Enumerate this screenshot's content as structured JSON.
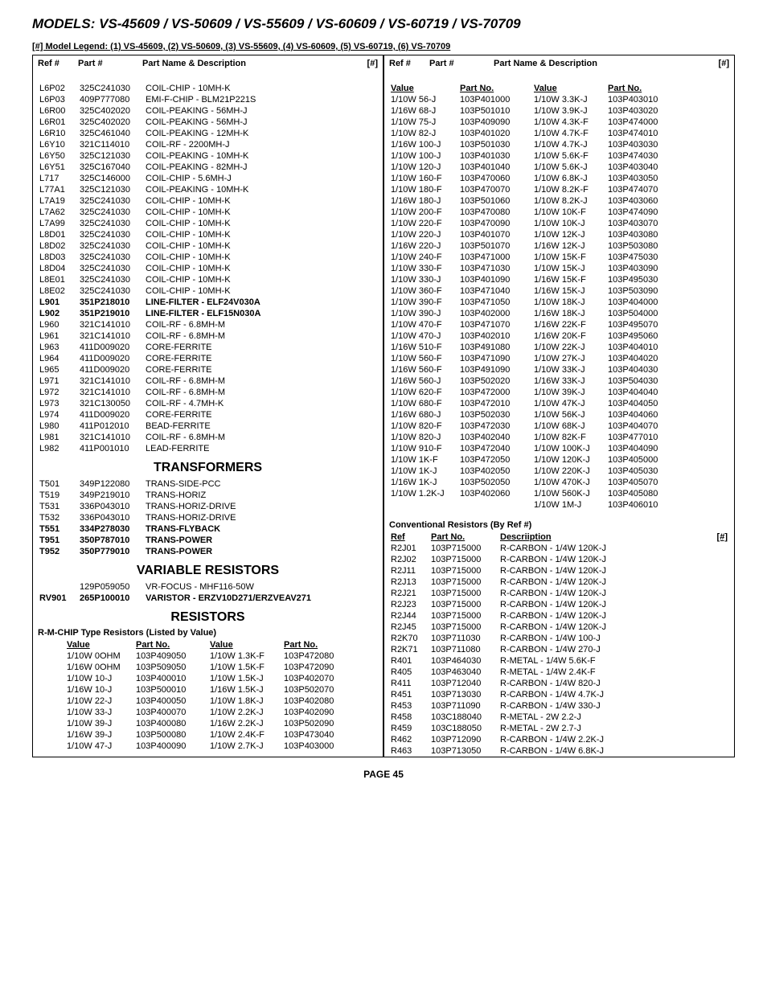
{
  "title": "MODELS: VS-45609 / VS-50609 / VS-55609 / VS-60609 / VS-60719 / VS-70709",
  "legend": "[#] Model Legend: (1) VS-45609, (2) VS-50609, (3) VS-55609, (4) VS-60609, (5) VS-60719, (6) VS-70709",
  "header": {
    "ref": "Ref #",
    "part": "Part #",
    "desc": "Part Name & Description",
    "num": "[#]"
  },
  "left_parts": [
    {
      "ref": "L6P02",
      "part": "325C241030",
      "desc": "COIL-CHIP - 10MH-K"
    },
    {
      "ref": "L6P03",
      "part": "409P777080",
      "desc": "EMI-F-CHIP - BLM21P221S"
    },
    {
      "ref": "L6R00",
      "part": "325C402020",
      "desc": "COIL-PEAKING - 56MH-J"
    },
    {
      "ref": "L6R01",
      "part": "325C402020",
      "desc": "COIL-PEAKING - 56MH-J"
    },
    {
      "ref": "L6R10",
      "part": "325C461040",
      "desc": "COIL-PEAKING - 12MH-K"
    },
    {
      "ref": "L6Y10",
      "part": "321C114010",
      "desc": "COIL-RF - 2200MH-J"
    },
    {
      "ref": "L6Y50",
      "part": "325C121030",
      "desc": "COIL-PEAKING - 10MH-K"
    },
    {
      "ref": "L6Y51",
      "part": "325C167040",
      "desc": "COIL-PEAKING - 82MH-J"
    },
    {
      "ref": "L717",
      "part": "325C146000",
      "desc": "COIL-CHIP - 5.6MH-J"
    },
    {
      "ref": "L77A1",
      "part": "325C121030",
      "desc": "COIL-PEAKING - 10MH-K"
    },
    {
      "ref": "L7A19",
      "part": "325C241030",
      "desc": "COIL-CHIP - 10MH-K"
    },
    {
      "ref": "L7A62",
      "part": "325C241030",
      "desc": "COIL-CHIP - 10MH-K"
    },
    {
      "ref": "L7A99",
      "part": "325C241030",
      "desc": "COIL-CHIP - 10MH-K"
    },
    {
      "ref": "L8D01",
      "part": "325C241030",
      "desc": "COIL-CHIP - 10MH-K"
    },
    {
      "ref": "L8D02",
      "part": "325C241030",
      "desc": "COIL-CHIP - 10MH-K"
    },
    {
      "ref": "L8D03",
      "part": "325C241030",
      "desc": "COIL-CHIP - 10MH-K"
    },
    {
      "ref": "L8D04",
      "part": "325C241030",
      "desc": "COIL-CHIP - 10MH-K"
    },
    {
      "ref": "L8E01",
      "part": "325C241030",
      "desc": "COIL-CHIP - 10MH-K"
    },
    {
      "ref": "L8E02",
      "part": "325C241030",
      "desc": "COIL-CHIP - 10MH-K"
    },
    {
      "ref": "L901",
      "part": "351P218010",
      "desc": "LINE-FILTER - ELF24V030A",
      "bold": true
    },
    {
      "ref": "L902",
      "part": "351P219010",
      "desc": "LINE-FILTER - ELF15N030A",
      "bold": true
    },
    {
      "ref": "L960",
      "part": "321C141010",
      "desc": "COIL-RF - 6.8MH-M"
    },
    {
      "ref": "L961",
      "part": "321C141010",
      "desc": "COIL-RF - 6.8MH-M"
    },
    {
      "ref": "L963",
      "part": "411D009020",
      "desc": "CORE-FERRITE"
    },
    {
      "ref": "L964",
      "part": "411D009020",
      "desc": "CORE-FERRITE"
    },
    {
      "ref": "L965",
      "part": "411D009020",
      "desc": "CORE-FERRITE"
    },
    {
      "ref": "L971",
      "part": "321C141010",
      "desc": "COIL-RF - 6.8MH-M"
    },
    {
      "ref": "L972",
      "part": "321C141010",
      "desc": "COIL-RF - 6.8MH-M"
    },
    {
      "ref": "L973",
      "part": "321C130050",
      "desc": "COIL-RF - 4.7MH-K"
    },
    {
      "ref": "L974",
      "part": "411D009020",
      "desc": "CORE-FERRITE"
    },
    {
      "ref": "L980",
      "part": "411P012010",
      "desc": "BEAD-FERRITE"
    },
    {
      "ref": "L981",
      "part": "321C141010",
      "desc": "COIL-RF - 6.8MH-M"
    },
    {
      "ref": "L982",
      "part": "411P001010",
      "desc": "LEAD-FERRITE"
    }
  ],
  "transformers_heading": "TRANSFORMERS",
  "transformers": [
    {
      "ref": "T501",
      "part": "349P122080",
      "desc": "TRANS-SIDE-PCC"
    },
    {
      "ref": "T519",
      "part": "349P219010",
      "desc": "TRANS-HORIZ"
    },
    {
      "ref": "T531",
      "part": "336P043010",
      "desc": "TRANS-HORIZ-DRIVE"
    },
    {
      "ref": "T532",
      "part": "336P043010",
      "desc": "TRANS-HORIZ-DRIVE"
    },
    {
      "ref": "T551",
      "part": "334P278030",
      "desc": "TRANS-FLYBACK",
      "bold": true
    },
    {
      "ref": "T951",
      "part": "350P787010",
      "desc": "TRANS-POWER",
      "bold": true
    },
    {
      "ref": "T952",
      "part": "350P779010",
      "desc": "TRANS-POWER",
      "bold": true
    }
  ],
  "varres_heading": "VARIABLE RESISTORS",
  "varres": [
    {
      "ref": "",
      "part": "129P059050",
      "desc": "VR-FOCUS - MHF116-50W"
    },
    {
      "ref": "RV901",
      "part": "265P100010",
      "desc": "VARISTOR - ERZV10D271/ERZVEAV271",
      "bold": true
    }
  ],
  "resistors_heading": "RESISTORS",
  "resistors_sub": "R-M-CHIP Type Resistors (Listed by Value)",
  "res_headers": {
    "v1": "Value",
    "p1": "Part No.",
    "v2": "Value",
    "p2": "Part No."
  },
  "res_left": [
    {
      "v1": "1/10W 0OHM",
      "p1": "103P409050",
      "v2": "1/10W 1.3K-F",
      "p2": "103P472080"
    },
    {
      "v1": "1/16W 0OHM",
      "p1": "103P509050",
      "v2": "1/10W 1.5K-F",
      "p2": "103P472090"
    },
    {
      "v1": "1/10W 10-J",
      "p1": "103P400010",
      "v2": "1/10W 1.5K-J",
      "p2": "103P402070"
    },
    {
      "v1": "1/16W 10-J",
      "p1": "103P500010",
      "v2": "1/16W 1.5K-J",
      "p2": "103P502070"
    },
    {
      "v1": "1/10W 22-J",
      "p1": "103P400050",
      "v2": "1/10W 1.8K-J",
      "p2": "103P402080"
    },
    {
      "v1": "1/10W 33-J",
      "p1": "103P400070",
      "v2": "1/10W 2.2K-J",
      "p2": "103P402090"
    },
    {
      "v1": "1/10W 39-J",
      "p1": "103P400080",
      "v2": "1/16W 2.2K-J",
      "p2": "103P502090"
    },
    {
      "v1": "1/16W 39-J",
      "p1": "103P500080",
      "v2": "1/10W 2.4K-F",
      "p2": "103P473040"
    },
    {
      "v1": "1/10W 47-J",
      "p1": "103P400090",
      "v2": "1/10W 2.7K-J",
      "p2": "103P403000"
    }
  ],
  "res_right": [
    {
      "v1": "1/10W 56-J",
      "p1": "103P401000",
      "v2": "1/10W 3.3K-J",
      "p2": "103P403010"
    },
    {
      "v1": "1/16W 68-J",
      "p1": "103P501010",
      "v2": "1/10W 3.9K-J",
      "p2": "103P403020"
    },
    {
      "v1": "1/10W 75-J",
      "p1": "103P409090",
      "v2": "1/10W 4.3K-F",
      "p2": "103P474000"
    },
    {
      "v1": "1/10W 82-J",
      "p1": "103P401020",
      "v2": "1/10W 4.7K-F",
      "p2": "103P474010"
    },
    {
      "v1": "1/16W 100-J",
      "p1": "103P501030",
      "v2": "1/10W 4.7K-J",
      "p2": "103P403030"
    },
    {
      "v1": "1/10W 100-J",
      "p1": "103P401030",
      "v2": "1/10W 5.6K-F",
      "p2": "103P474030"
    },
    {
      "v1": "1/10W 120-J",
      "p1": "103P401040",
      "v2": "1/10W 5.6K-J",
      "p2": "103P403040"
    },
    {
      "v1": "1/10W 160-F",
      "p1": "103P470060",
      "v2": "1/10W 6.8K-J",
      "p2": "103P403050"
    },
    {
      "v1": "1/10W 180-F",
      "p1": "103P470070",
      "v2": "1/10W 8.2K-F",
      "p2": "103P474070"
    },
    {
      "v1": "1/16W 180-J",
      "p1": "103P501060",
      "v2": "1/10W 8.2K-J",
      "p2": "103P403060"
    },
    {
      "v1": "1/10W 200-F",
      "p1": "103P470080",
      "v2": "1/10W 10K-F",
      "p2": "103P474090"
    },
    {
      "v1": "1/10W 220-F",
      "p1": "103P470090",
      "v2": "1/10W 10K-J",
      "p2": "103P403070"
    },
    {
      "v1": "1/10W 220-J",
      "p1": "103P401070",
      "v2": "1/10W 12K-J",
      "p2": "103P403080"
    },
    {
      "v1": "1/16W 220-J",
      "p1": "103P501070",
      "v2": "1/16W 12K-J",
      "p2": "103P503080"
    },
    {
      "v1": "1/10W 240-F",
      "p1": "103P471000",
      "v2": "1/10W 15K-F",
      "p2": "103P475030"
    },
    {
      "v1": "1/10W 330-F",
      "p1": "103P471030",
      "v2": "1/10W 15K-J",
      "p2": "103P403090"
    },
    {
      "v1": "1/10W 330-J",
      "p1": "103P401090",
      "v2": "1/16W 15K-F",
      "p2": "103P495030"
    },
    {
      "v1": "1/10W 360-F",
      "p1": "103P471040",
      "v2": "1/16W 15K-J",
      "p2": "103P503090"
    },
    {
      "v1": "1/10W 390-F",
      "p1": "103P471050",
      "v2": "1/10W 18K-J",
      "p2": "103P404000"
    },
    {
      "v1": "1/10W 390-J",
      "p1": "103P402000",
      "v2": "1/16W 18K-J",
      "p2": "103P504000"
    },
    {
      "v1": "1/10W 470-F",
      "p1": "103P471070",
      "v2": "1/16W 22K-F",
      "p2": "103P495070"
    },
    {
      "v1": "1/10W 470-J",
      "p1": "103P402010",
      "v2": "1/16W 20K-F",
      "p2": "103P495060"
    },
    {
      "v1": "1/16W 510-F",
      "p1": "103P491080",
      "v2": "1/10W 22K-J",
      "p2": "103P404010"
    },
    {
      "v1": "1/10W 560-F",
      "p1": "103P471090",
      "v2": "1/10W 27K-J",
      "p2": "103P404020"
    },
    {
      "v1": "1/16W 560-F",
      "p1": "103P491090",
      "v2": "1/10W 33K-J",
      "p2": "103P404030"
    },
    {
      "v1": "1/16W 560-J",
      "p1": "103P502020",
      "v2": "1/16W 33K-J",
      "p2": "103P504030"
    },
    {
      "v1": "1/10W 620-F",
      "p1": "103P472000",
      "v2": "1/10W 39K-J",
      "p2": "103P404040"
    },
    {
      "v1": "1/10W 680-F",
      "p1": "103P472010",
      "v2": "1/10W 47K-J",
      "p2": "103P404050"
    },
    {
      "v1": "1/16W 680-J",
      "p1": "103P502030",
      "v2": "1/10W 56K-J",
      "p2": "103P404060"
    },
    {
      "v1": "1/10W 820-F",
      "p1": "103P472030",
      "v2": "1/10W 68K-J",
      "p2": "103P404070"
    },
    {
      "v1": "1/10W 820-J",
      "p1": "103P402040",
      "v2": "1/10W 82K-F",
      "p2": "103P477010"
    },
    {
      "v1": "1/10W 910-F",
      "p1": "103P472040",
      "v2": "1/10W 100K-J",
      "p2": "103P404090"
    },
    {
      "v1": "1/10W 1K-F",
      "p1": "103P472050",
      "v2": "1/10W 120K-J",
      "p2": "103P405000"
    },
    {
      "v1": "1/10W 1K-J",
      "p1": "103P402050",
      "v2": "1/10W 220K-J",
      "p2": "103P405030"
    },
    {
      "v1": "1/16W 1K-J",
      "p1": "103P502050",
      "v2": "1/10W 470K-J",
      "p2": "103P405070"
    },
    {
      "v1": "1/10W 1.2K-J",
      "p1": "103P402060",
      "v2": "1/10W 560K-J",
      "p2": "103P405080"
    },
    {
      "v1": "",
      "p1": "",
      "v2": "1/10W 1M-J",
      "p2": "103P406010"
    }
  ],
  "conv_heading": "Conventional Resistors (By Ref #)",
  "conv_headers": {
    "ref": "Ref",
    "part": "Part No.",
    "desc": "Descriiption",
    "num": "[#]"
  },
  "conv": [
    {
      "ref": "R2J01",
      "part": "103P715000",
      "desc": "R-CARBON - 1/4W 120K-J"
    },
    {
      "ref": "R2J02",
      "part": "103P715000",
      "desc": "R-CARBON - 1/4W 120K-J"
    },
    {
      "ref": "R2J11",
      "part": "103P715000",
      "desc": "R-CARBON - 1/4W 120K-J"
    },
    {
      "ref": "R2J13",
      "part": "103P715000",
      "desc": "R-CARBON - 1/4W 120K-J"
    },
    {
      "ref": "R2J21",
      "part": "103P715000",
      "desc": "R-CARBON - 1/4W 120K-J"
    },
    {
      "ref": "R2J23",
      "part": "103P715000",
      "desc": "R-CARBON - 1/4W 120K-J"
    },
    {
      "ref": "R2J44",
      "part": "103P715000",
      "desc": "R-CARBON - 1/4W 120K-J"
    },
    {
      "ref": "R2J45",
      "part": "103P715000",
      "desc": "R-CARBON - 1/4W 120K-J"
    },
    {
      "ref": "R2K70",
      "part": "103P711030",
      "desc": "R-CARBON - 1/4W 100-J"
    },
    {
      "ref": "R2K71",
      "part": "103P711080",
      "desc": "R-CARBON - 1/4W 270-J"
    },
    {
      "ref": "R401",
      "part": "103P464030",
      "desc": "R-METAL - 1/4W 5.6K-F"
    },
    {
      "ref": "R405",
      "part": "103P463040",
      "desc": "R-METAL - 1/4W 2.4K-F"
    },
    {
      "ref": "R411",
      "part": "103P712040",
      "desc": "R-CARBON - 1/4W 820-J"
    },
    {
      "ref": "R451",
      "part": "103P713030",
      "desc": "R-CARBON - 1/4W 4.7K-J"
    },
    {
      "ref": "R453",
      "part": "103P711090",
      "desc": "R-CARBON - 1/4W 330-J"
    },
    {
      "ref": "R458",
      "part": "103C188040",
      "desc": "R-METAL - 2W 2.2-J"
    },
    {
      "ref": "R459",
      "part": "103C188050",
      "desc": "R-METAL - 2W 2.7-J"
    },
    {
      "ref": "R462",
      "part": "103P712090",
      "desc": "R-CARBON - 1/4W 2.2K-J"
    },
    {
      "ref": "R463",
      "part": "103P713050",
      "desc": "R-CARBON - 1/4W 6.8K-J"
    }
  ],
  "page": "PAGE 45"
}
